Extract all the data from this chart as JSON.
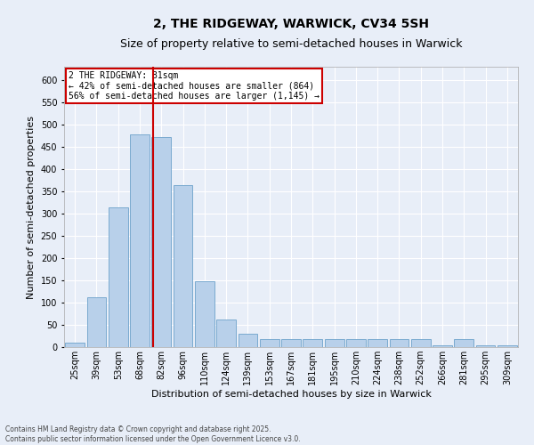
{
  "title": "2, THE RIDGEWAY, WARWICK, CV34 5SH",
  "subtitle": "Size of property relative to semi-detached houses in Warwick",
  "xlabel": "Distribution of semi-detached houses by size in Warwick",
  "ylabel": "Number of semi-detached properties",
  "categories": [
    "25sqm",
    "39sqm",
    "53sqm",
    "68sqm",
    "82sqm",
    "96sqm",
    "110sqm",
    "124sqm",
    "139sqm",
    "153sqm",
    "167sqm",
    "181sqm",
    "195sqm",
    "210sqm",
    "224sqm",
    "238sqm",
    "252sqm",
    "266sqm",
    "281sqm",
    "295sqm",
    "309sqm"
  ],
  "values": [
    10,
    113,
    315,
    478,
    473,
    365,
    148,
    62,
    30,
    18,
    18,
    18,
    18,
    18,
    18,
    18,
    18,
    4,
    18,
    4,
    4
  ],
  "bar_color": "#b8d0ea",
  "bar_edge_color": "#7aaad0",
  "bg_color": "#e8eef8",
  "grid_color": "#ffffff",
  "vline_color": "#cc0000",
  "annotation_text": "2 THE RIDGEWAY: 81sqm\n← 42% of semi-detached houses are smaller (864)\n56% of semi-detached houses are larger (1,145) →",
  "annotation_box_color": "#cc0000",
  "footnote": "Contains HM Land Registry data © Crown copyright and database right 2025.\nContains public sector information licensed under the Open Government Licence v3.0.",
  "ylim": [
    0,
    630
  ],
  "yticks": [
    0,
    50,
    100,
    150,
    200,
    250,
    300,
    350,
    400,
    450,
    500,
    550,
    600
  ],
  "title_fontsize": 10,
  "subtitle_fontsize": 9,
  "ylabel_fontsize": 8,
  "xlabel_fontsize": 8,
  "tick_fontsize": 7,
  "annot_fontsize": 7,
  "footnote_fontsize": 5.5
}
